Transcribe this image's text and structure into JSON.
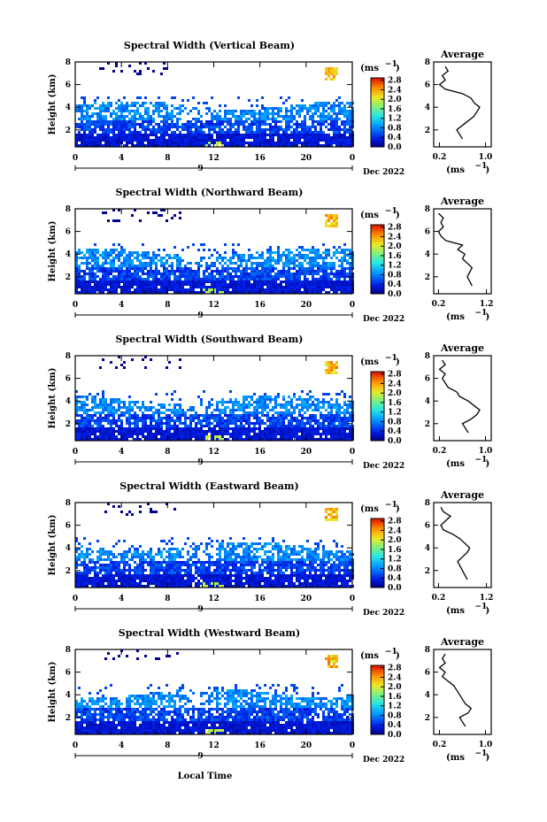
{
  "figure": {
    "xlabel": "Local Time",
    "date_label": "Dec 2022",
    "unit_label": "(ms",
    "unit_exp": "−1",
    "avg_title": "Average",
    "ylabel": "Height (km)"
  },
  "chart_data": [
    {
      "type": "heatmap",
      "title": "Spectral Width (Vertical Beam)",
      "x_ticks": [
        "0",
        "4",
        "8",
        "12",
        "16",
        "20",
        "0"
      ],
      "x_sub_label": "9",
      "y_ticks": [
        "2",
        "4",
        "6",
        "8"
      ],
      "xlim": [
        0,
        24
      ],
      "ylim": [
        0.5,
        8
      ],
      "colorbar_ticks": [
        "0.0",
        "0.4",
        "0.8",
        "1.2",
        "1.6",
        "2.0",
        "2.4",
        "2.8"
      ],
      "colorbar_range": [
        0,
        2.9
      ],
      "avg_ticks": [
        "0.2",
        "1.0"
      ],
      "avg_xlim": [
        0.1,
        1.1
      ],
      "avg_profile": [
        [
          1.2,
          0.6
        ],
        [
          1.6,
          0.55
        ],
        [
          2.0,
          0.5
        ],
        [
          2.4,
          0.6
        ],
        [
          2.8,
          0.7
        ],
        [
          3.2,
          0.8
        ],
        [
          3.6,
          0.85
        ],
        [
          4.0,
          0.9
        ],
        [
          4.4,
          0.8
        ],
        [
          4.8,
          0.75
        ],
        [
          5.2,
          0.6
        ],
        [
          5.6,
          0.3
        ],
        [
          6.0,
          0.2
        ],
        [
          6.4,
          0.3
        ],
        [
          6.8,
          0.25
        ],
        [
          7.2,
          0.35
        ],
        [
          7.6,
          0.3
        ]
      ]
    },
    {
      "type": "heatmap",
      "title": "Spectral Width (Northward Beam)",
      "x_ticks": [
        "0",
        "4",
        "8",
        "12",
        "16",
        "20",
        "0"
      ],
      "x_sub_label": "9",
      "y_ticks": [
        "2",
        "4",
        "6",
        "8"
      ],
      "xlim": [
        0,
        24
      ],
      "ylim": [
        0.5,
        8
      ],
      "colorbar_ticks": [
        "0.0",
        "0.4",
        "0.8",
        "1.2",
        "1.6",
        "2.0",
        "2.4",
        "2.8"
      ],
      "colorbar_range": [
        0,
        2.9
      ],
      "avg_ticks": [
        "0.2",
        "1.2"
      ],
      "avg_xlim": [
        0.1,
        1.3
      ],
      "avg_profile": [
        [
          1.2,
          0.9
        ],
        [
          1.6,
          0.85
        ],
        [
          2.0,
          0.8
        ],
        [
          2.4,
          0.85
        ],
        [
          2.8,
          0.9
        ],
        [
          3.2,
          0.8
        ],
        [
          3.6,
          0.7
        ],
        [
          4.0,
          0.75
        ],
        [
          4.4,
          0.6
        ],
        [
          4.8,
          0.7
        ],
        [
          5.2,
          0.35
        ],
        [
          5.6,
          0.25
        ],
        [
          6.0,
          0.2
        ],
        [
          6.4,
          0.3
        ],
        [
          6.8,
          0.25
        ],
        [
          7.2,
          0.3
        ],
        [
          7.6,
          0.2
        ]
      ]
    },
    {
      "type": "heatmap",
      "title": "Spectral Width (Southward Beam)",
      "x_ticks": [
        "0",
        "4",
        "8",
        "12",
        "16",
        "20",
        "0"
      ],
      "x_sub_label": "9",
      "y_ticks": [
        "2",
        "4",
        "6",
        "8"
      ],
      "xlim": [
        0,
        24
      ],
      "ylim": [
        0.5,
        8
      ],
      "colorbar_ticks": [
        "0.0",
        "0.4",
        "0.8",
        "1.2",
        "1.6",
        "2.0",
        "2.4",
        "2.8"
      ],
      "colorbar_range": [
        0,
        2.9
      ],
      "avg_ticks": [
        "0.2",
        "1.0"
      ],
      "avg_xlim": [
        0.1,
        1.1
      ],
      "avg_profile": [
        [
          1.2,
          0.7
        ],
        [
          1.6,
          0.65
        ],
        [
          2.0,
          0.6
        ],
        [
          2.4,
          0.75
        ],
        [
          2.8,
          0.85
        ],
        [
          3.2,
          0.9
        ],
        [
          3.6,
          0.8
        ],
        [
          4.0,
          0.7
        ],
        [
          4.4,
          0.55
        ],
        [
          4.8,
          0.5
        ],
        [
          5.2,
          0.35
        ],
        [
          5.6,
          0.3
        ],
        [
          6.0,
          0.25
        ],
        [
          6.4,
          0.3
        ],
        [
          6.8,
          0.2
        ],
        [
          7.2,
          0.3
        ],
        [
          7.6,
          0.25
        ]
      ]
    },
    {
      "type": "heatmap",
      "title": "Spectral Width (Eastward Beam)",
      "x_ticks": [
        "0",
        "4",
        "8",
        "12",
        "16",
        "20",
        "0"
      ],
      "x_sub_label": "9",
      "y_ticks": [
        "2",
        "4",
        "6",
        "8"
      ],
      "xlim": [
        0,
        24
      ],
      "ylim": [
        0.5,
        8
      ],
      "colorbar_ticks": [
        "0.0",
        "0.4",
        "0.8",
        "1.2",
        "1.6",
        "2.0",
        "2.4",
        "2.8"
      ],
      "colorbar_range": [
        0,
        2.9
      ],
      "avg_ticks": [
        "0.2",
        "1.2"
      ],
      "avg_xlim": [
        0.1,
        1.3
      ],
      "avg_profile": [
        [
          1.2,
          0.8
        ],
        [
          1.6,
          0.75
        ],
        [
          2.0,
          0.7
        ],
        [
          2.4,
          0.65
        ],
        [
          2.8,
          0.6
        ],
        [
          3.2,
          0.7
        ],
        [
          3.6,
          0.8
        ],
        [
          4.0,
          0.85
        ],
        [
          4.4,
          0.75
        ],
        [
          4.8,
          0.65
        ],
        [
          5.2,
          0.5
        ],
        [
          5.6,
          0.3
        ],
        [
          6.0,
          0.25
        ],
        [
          6.4,
          0.35
        ],
        [
          6.8,
          0.45
        ],
        [
          7.2,
          0.3
        ],
        [
          7.6,
          0.25
        ]
      ]
    },
    {
      "type": "heatmap",
      "title": "Spectral Width (Westward Beam)",
      "x_ticks": [
        "0",
        "4",
        "8",
        "12",
        "16",
        "20",
        "0"
      ],
      "x_sub_label": "9",
      "y_ticks": [
        "2",
        "4",
        "6",
        "8"
      ],
      "xlim": [
        0,
        24
      ],
      "ylim": [
        0.5,
        8
      ],
      "colorbar_ticks": [
        "0.0",
        "0.4",
        "0.8",
        "1.2",
        "1.6",
        "2.0",
        "2.4",
        "2.8"
      ],
      "colorbar_range": [
        0,
        2.9
      ],
      "avg_ticks": [
        "0.2",
        "1.0"
      ],
      "avg_xlim": [
        0.1,
        1.1
      ],
      "avg_profile": [
        [
          1.2,
          0.65
        ],
        [
          1.6,
          0.6
        ],
        [
          2.0,
          0.55
        ],
        [
          2.4,
          0.7
        ],
        [
          2.8,
          0.75
        ],
        [
          3.2,
          0.65
        ],
        [
          3.6,
          0.6
        ],
        [
          4.0,
          0.55
        ],
        [
          4.4,
          0.5
        ],
        [
          4.8,
          0.45
        ],
        [
          5.2,
          0.35
        ],
        [
          5.6,
          0.25
        ],
        [
          6.0,
          0.3
        ],
        [
          6.4,
          0.2
        ],
        [
          6.8,
          0.3
        ],
        [
          7.2,
          0.25
        ],
        [
          7.6,
          0.3
        ]
      ]
    }
  ]
}
